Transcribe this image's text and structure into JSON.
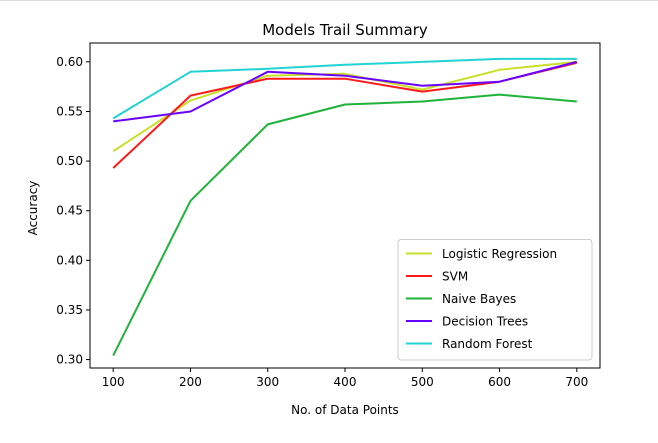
{
  "chart_data": {
    "type": "line",
    "title": "Models Trail Summary",
    "xlabel": "No. of Data Points",
    "ylabel": "Accuracy",
    "x": [
      100,
      200,
      300,
      400,
      500,
      600,
      700
    ],
    "xticks": [
      100,
      200,
      300,
      400,
      500,
      600,
      700
    ],
    "yticks": [
      0.3,
      0.35,
      0.4,
      0.45,
      0.5,
      0.55,
      0.6
    ],
    "xlim": [
      70,
      730
    ],
    "ylim": [
      0.2915,
      0.619
    ],
    "grid": false,
    "legend_position": "lower-right",
    "series": [
      {
        "name": "Logistic Regression",
        "color": "#c8e02a",
        "values": [
          0.51,
          0.561,
          0.586,
          0.588,
          0.572,
          0.592,
          0.6
        ]
      },
      {
        "name": "SVM",
        "color": "#ff1a1a",
        "values": [
          0.493,
          0.566,
          0.583,
          0.583,
          0.57,
          0.58,
          0.599
        ]
      },
      {
        "name": "Naive Bayes",
        "color": "#1fb33a",
        "values": [
          0.304,
          0.46,
          0.537,
          0.557,
          0.56,
          0.567,
          0.56
        ]
      },
      {
        "name": "Decision Trees",
        "color": "#6a00ff",
        "values": [
          0.54,
          0.55,
          0.59,
          0.586,
          0.576,
          0.58,
          0.6
        ]
      },
      {
        "name": "Random Forest",
        "color": "#22d3d3",
        "values": [
          0.543,
          0.59,
          0.593,
          0.597,
          0.6,
          0.603,
          0.603
        ]
      }
    ]
  }
}
